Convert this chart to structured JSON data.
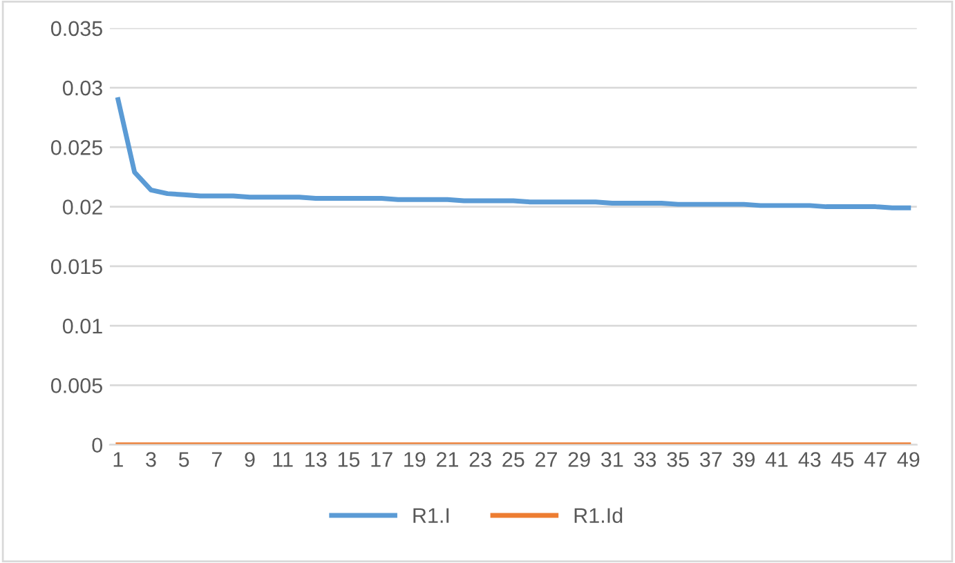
{
  "chart_data": {
    "type": "line",
    "categories": [
      "1",
      null,
      "3",
      null,
      "5",
      null,
      "7",
      null,
      "9",
      null,
      "11",
      null,
      "13",
      null,
      "15",
      null,
      "17",
      null,
      "19",
      null,
      "21",
      null,
      "23",
      null,
      "25",
      null,
      "27",
      null,
      "29",
      null,
      "31",
      null,
      "33",
      null,
      "35",
      null,
      "37",
      null,
      "39",
      null,
      "41",
      null,
      "43",
      null,
      "45",
      null,
      "47",
      null,
      "49"
    ],
    "series": [
      {
        "name": "R1.I",
        "color": "#5b9bd5",
        "values": [
          0.029,
          0.0229,
          0.0214,
          0.0211,
          0.021,
          0.0209,
          0.0209,
          0.0209,
          0.0208,
          0.0208,
          0.0208,
          0.0208,
          0.0207,
          0.0207,
          0.0207,
          0.0207,
          0.0207,
          0.0206,
          0.0206,
          0.0206,
          0.0206,
          0.0205,
          0.0205,
          0.0205,
          0.0205,
          0.0204,
          0.0204,
          0.0204,
          0.0204,
          0.0204,
          0.0203,
          0.0203,
          0.0203,
          0.0203,
          0.0202,
          0.0202,
          0.0202,
          0.0202,
          0.0202,
          0.0201,
          0.0201,
          0.0201,
          0.0201,
          0.02,
          0.02,
          0.02,
          0.02,
          0.0199,
          0.0199
        ]
      },
      {
        "name": "R1.Id",
        "color": "#ed7d31",
        "values": [
          0,
          0,
          0,
          0,
          0,
          0,
          0,
          0,
          0,
          0,
          0,
          0,
          0,
          0,
          0,
          0,
          0,
          0,
          0,
          0,
          0,
          0,
          0,
          0,
          0,
          0,
          0,
          0,
          0,
          0,
          0,
          0,
          0,
          0,
          0,
          0,
          0,
          0,
          0,
          0,
          0,
          0,
          0,
          0,
          0,
          0,
          0,
          0,
          0
        ]
      }
    ],
    "ylim": [
      0,
      0.035
    ],
    "yticks": [
      0,
      0.005,
      0.01,
      0.015,
      0.02,
      0.025,
      0.03,
      0.035
    ],
    "grid": "y",
    "legend": "bottom",
    "marker": "none",
    "line_style": "solid"
  }
}
